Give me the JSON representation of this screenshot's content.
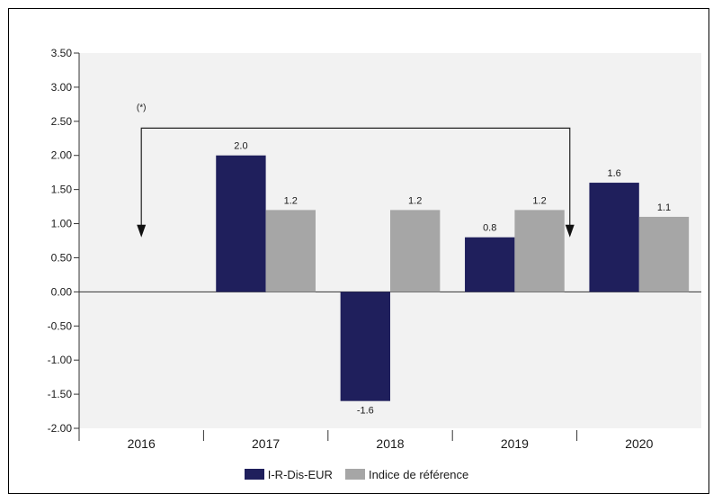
{
  "chart_data": {
    "type": "bar",
    "categories": [
      "2016",
      "2017",
      "2018",
      "2019",
      "2020"
    ],
    "series": [
      {
        "name": "I-R-Dis-EUR",
        "values": [
          null,
          2.0,
          -1.6,
          0.8,
          1.6
        ],
        "labels": [
          "",
          "2.0",
          "-1.6",
          "0.8",
          "1.6"
        ],
        "color": "#1f1f5c"
      },
      {
        "name": "Indice de référence",
        "values": [
          null,
          1.2,
          1.2,
          1.2,
          1.1
        ],
        "labels": [
          "",
          "1.2",
          "1.2",
          "1.2",
          "1.1"
        ],
        "color": "#a6a6a6"
      }
    ],
    "ylim": [
      -2.0,
      3.5
    ],
    "yticks": [
      3.5,
      3.0,
      2.5,
      2.0,
      1.5,
      1.0,
      0.5,
      0.0,
      -0.5,
      -1.0,
      -1.5,
      -2.0
    ],
    "ytick_labels": [
      "3.50",
      "3.00",
      "2.50",
      "2.00",
      "1.50",
      "1.00",
      "0.50",
      "0.00",
      "-0.50",
      "-1.00",
      "-1.50",
      "-2.00"
    ],
    "annotation": {
      "text": "(*)",
      "from_category": "2016",
      "to_category": "2019",
      "level": 2.4
    },
    "legend_position": "bottom",
    "plot_background": "#f2f2f2",
    "grid": false
  }
}
